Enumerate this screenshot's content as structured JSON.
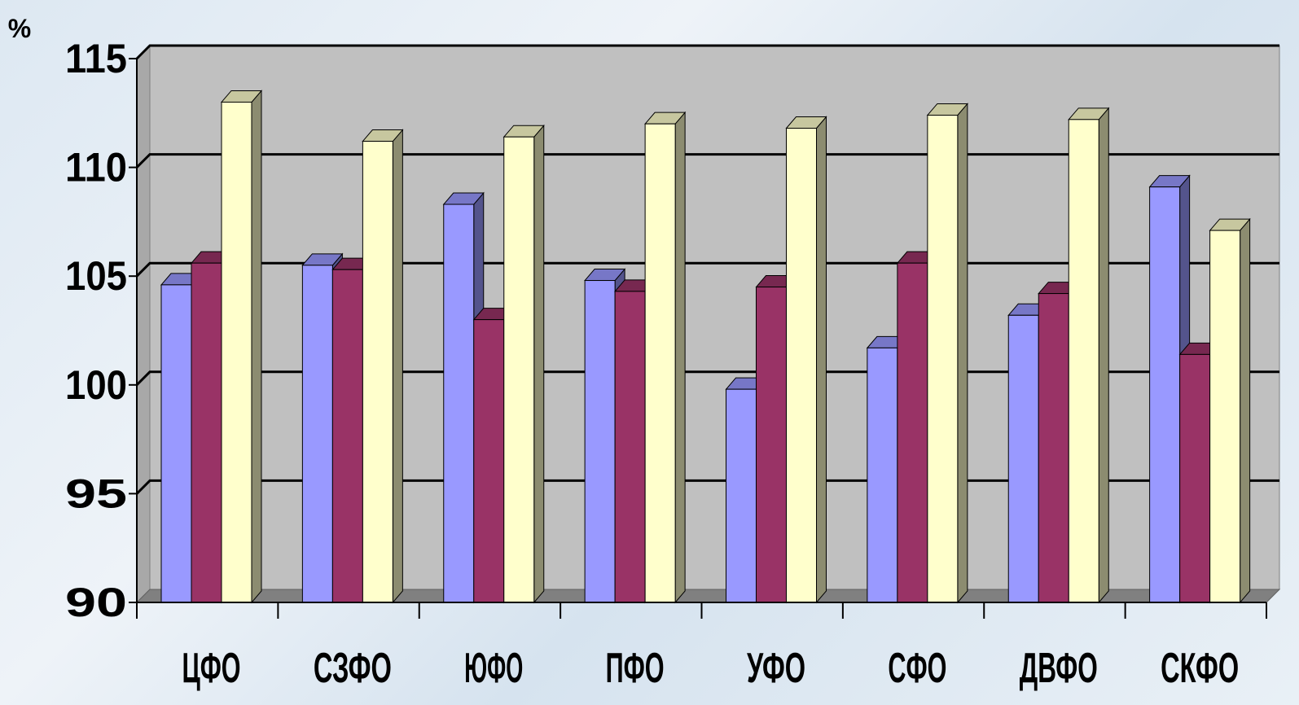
{
  "chart_data": {
    "type": "bar",
    "title": "",
    "xlabel": "",
    "ylabel": "%",
    "ylim": [
      90,
      115
    ],
    "yticks": [
      90,
      95,
      100,
      105,
      110,
      115
    ],
    "grid": true,
    "legend": "none",
    "categories": [
      "ЦФО",
      "СЗФО",
      "ЮФО",
      "ПФО",
      "УФО",
      "СФО",
      "ДВФО",
      "СКФО"
    ],
    "series": [
      {
        "values": [
          104.6,
          105.5,
          108.3,
          104.8,
          99.8,
          101.7,
          103.2,
          109.1
        ],
        "color": "#9999ff"
      },
      {
        "values": [
          105.6,
          105.3,
          103.0,
          104.3,
          104.5,
          105.6,
          104.2,
          101.4
        ],
        "color": "#993366"
      },
      {
        "values": [
          113.0,
          111.2,
          111.4,
          112.0,
          111.8,
          112.4,
          112.2,
          107.1
        ],
        "color": "#ffffcc"
      }
    ],
    "style": {
      "wall_color": "#c0c0c0",
      "floor_color": "#808080",
      "grid_color": "#000000"
    }
  }
}
